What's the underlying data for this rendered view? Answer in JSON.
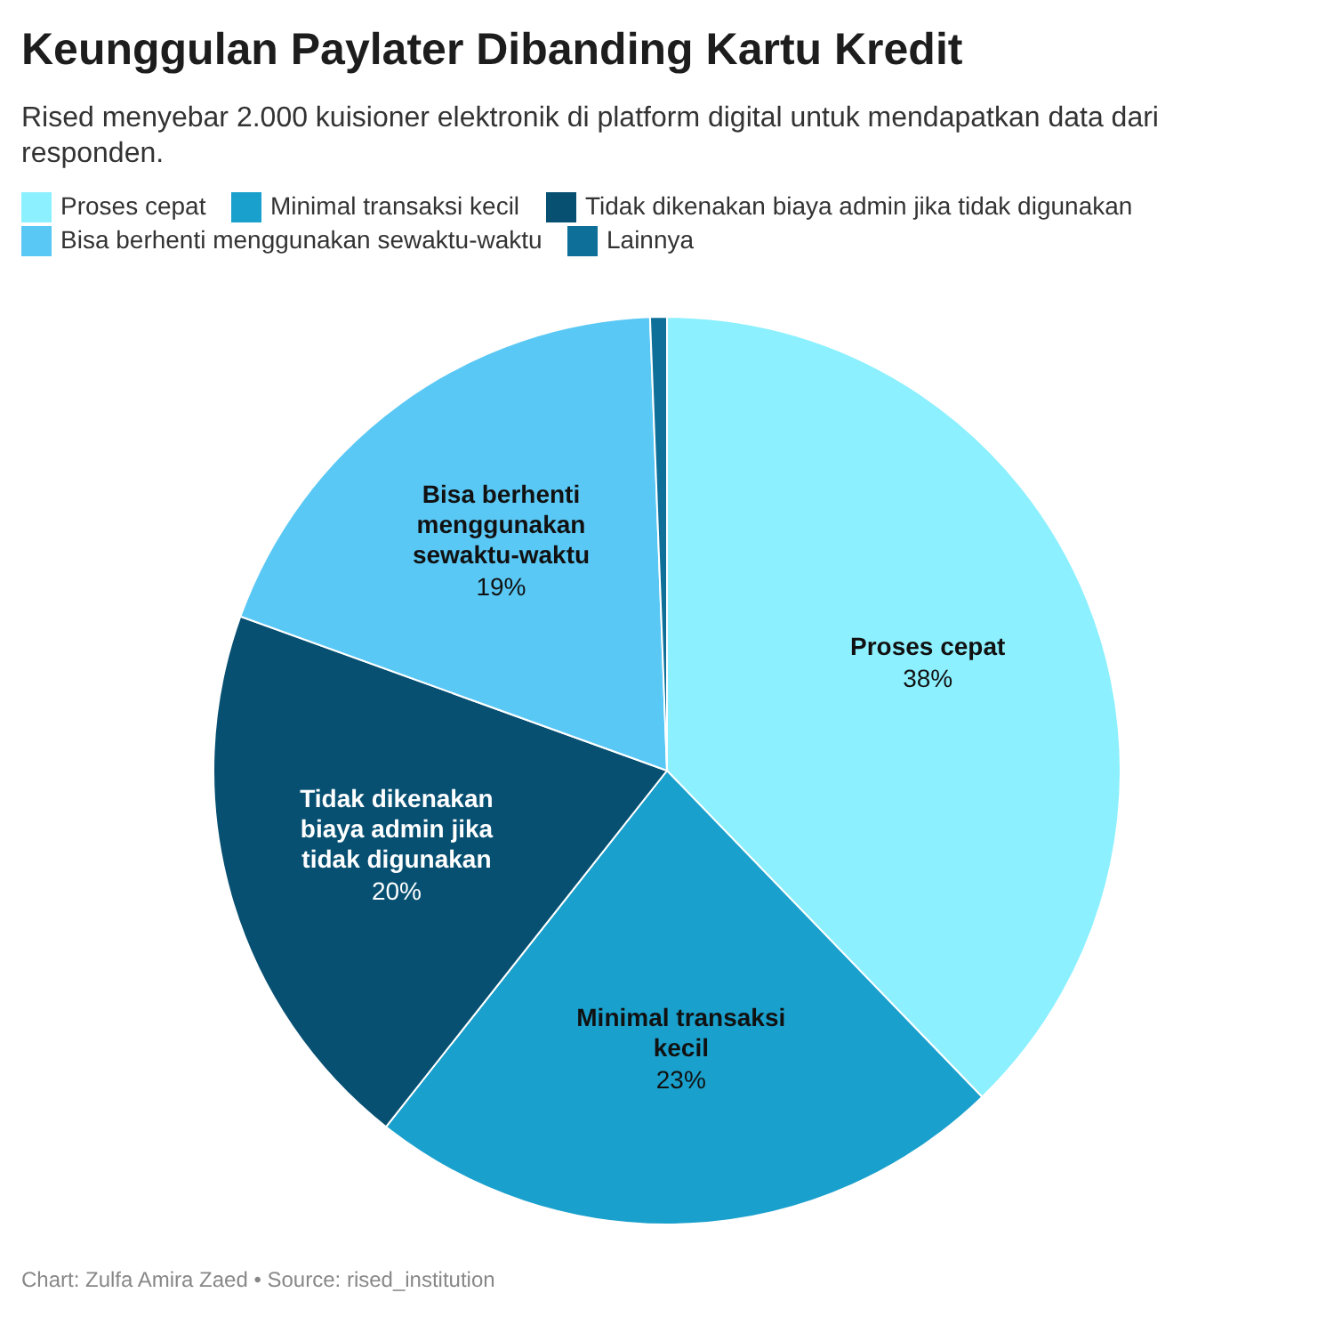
{
  "chart_data": {
    "type": "pie",
    "title": "Keunggulan Paylater Dibanding Kartu Kredit",
    "subtitle": "Rised menyebar 2.000 kuisioner elektronik di platform digital untuk mendapatkan data dari responden.",
    "categories": [
      "Proses cepat",
      "Minimal transaksi kecil",
      "Tidak dikenakan biaya admin jika tidak digunakan",
      "Bisa berhenti menggunakan sewaktu-waktu",
      "Lainnya"
    ],
    "values": [
      38,
      23,
      20,
      19,
      0.6
    ],
    "colors": [
      "#8cf0ff",
      "#1aa0cc",
      "#075072",
      "#5ac8f5",
      "#0e7099"
    ],
    "value_labels": [
      "38%",
      "23%",
      "20%",
      "19%",
      null
    ],
    "legend": "top",
    "annotations": [
      "Chart: Zulfa Amira Zaed • Source: rised_institution"
    ]
  }
}
